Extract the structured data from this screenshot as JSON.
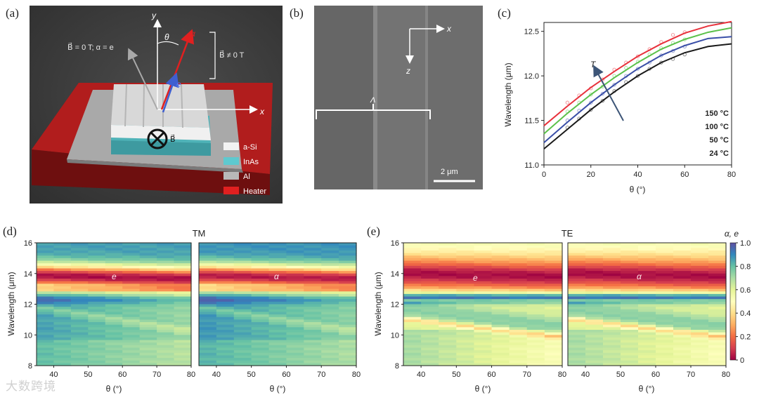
{
  "panels": {
    "a": {
      "label": "(a)",
      "y_axis": "y",
      "x_axis": "x",
      "theta": "θ",
      "alpha_sym": "α",
      "e_sym": "e",
      "b_zero": "B⃗ = 0 T; α = e",
      "b_nonzero": "B⃗ ≠ 0 T",
      "b_field": "B⃗",
      "legend": [
        {
          "name": "a-Si",
          "color": "#f2f2f2"
        },
        {
          "name": "InAs",
          "color": "#5ec9cf"
        },
        {
          "name": "Al",
          "color": "#b8b8b8"
        },
        {
          "name": "Heater",
          "color": "#e02020"
        }
      ]
    },
    "b": {
      "label": "(b)",
      "x_axis": "x",
      "z_axis": "z",
      "period": "Λ",
      "scale": "2 μm"
    },
    "c": {
      "label": "(c)"
    },
    "d": {
      "label": "(d)",
      "header": "TM"
    },
    "e": {
      "label": "(e)",
      "header": "TE"
    }
  },
  "watermark": "大数跨境",
  "chart_data": [
    {
      "id": "c",
      "type": "line",
      "xlabel": "θ (°)",
      "ylabel": "Wavelength (μm)",
      "xlim": [
        0,
        80
      ],
      "ylim": [
        11.0,
        12.6
      ],
      "xticks": [
        0,
        20,
        40,
        60,
        80
      ],
      "yticks": [
        11.0,
        11.5,
        12.0,
        12.5
      ],
      "annotation": "T",
      "x": [
        0,
        10,
        20,
        30,
        40,
        50,
        60,
        70,
        80
      ],
      "series": [
        {
          "name": "150 °C",
          "color": "#e8323c",
          "values": [
            11.44,
            11.66,
            11.87,
            12.05,
            12.22,
            12.36,
            12.48,
            12.56,
            12.61
          ]
        },
        {
          "name": "100 °C",
          "color": "#5bc14a",
          "values": [
            11.35,
            11.58,
            11.79,
            11.98,
            12.15,
            12.3,
            12.41,
            12.49,
            12.54
          ]
        },
        {
          "name": "50 °C",
          "color": "#3a4fa8",
          "values": [
            11.25,
            11.48,
            11.7,
            11.9,
            12.08,
            12.23,
            12.34,
            12.42,
            12.44
          ]
        },
        {
          "name": "24 °C",
          "color": "#1a1a1a",
          "values": [
            11.18,
            11.4,
            11.62,
            11.82,
            12.0,
            12.15,
            12.26,
            12.33,
            12.36
          ]
        }
      ],
      "markers_x": [
        10,
        15,
        20,
        25,
        30,
        35,
        40,
        45,
        50,
        55,
        60
      ],
      "markers": [
        [
          11.7,
          11.78,
          11.86,
          11.96,
          12.07,
          12.15,
          12.22,
          12.3,
          12.38,
          12.46,
          12.49
        ],
        [
          11.6,
          11.7,
          11.79,
          11.88,
          12.0,
          12.09,
          12.16,
          12.24,
          12.31,
          12.37,
          12.41
        ],
        [
          11.5,
          11.61,
          11.7,
          11.8,
          11.9,
          12.0,
          12.08,
          12.15,
          12.23,
          12.28,
          12.33
        ],
        [
          11.42,
          11.52,
          11.62,
          11.72,
          11.83,
          11.93,
          12.0,
          12.08,
          12.15,
          12.19,
          12.24
        ]
      ]
    },
    {
      "id": "d",
      "type": "heatmap",
      "header": "TM",
      "xlabel": "θ (°)",
      "ylabel": "Wavelength (μm)",
      "xlim": [
        35,
        80
      ],
      "ylim": [
        8,
        16
      ],
      "xticks": [
        40,
        50,
        60,
        70,
        80
      ],
      "yticks": [
        8,
        10,
        12,
        14,
        16
      ],
      "maps": [
        {
          "label": "e"
        },
        {
          "label": "α"
        }
      ]
    },
    {
      "id": "e",
      "type": "heatmap",
      "header": "TE",
      "xlabel": "θ (°)",
      "ylabel": "Wavelength (μm)",
      "xlim": [
        35,
        80
      ],
      "ylim": [
        8,
        16
      ],
      "xticks": [
        40,
        50,
        60,
        70,
        80
      ],
      "yticks": [
        8,
        10,
        12,
        14,
        16
      ],
      "maps": [
        {
          "label": "e"
        },
        {
          "label": "α"
        }
      ],
      "colorbar": {
        "label": "α, e",
        "min": 0,
        "max": 1,
        "ticks": [
          0,
          0.2,
          0.4,
          0.6,
          0.8,
          1.0
        ]
      }
    }
  ]
}
